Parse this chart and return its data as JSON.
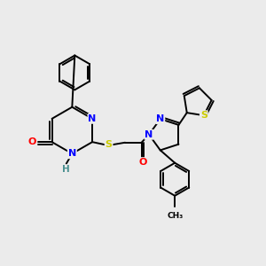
{
  "bg_color": "#ebebeb",
  "bond_color": "#000000",
  "atom_colors": {
    "N": "#0000ff",
    "O": "#ff0000",
    "S": "#cccc00",
    "H": "#4a9090",
    "C": "#000000"
  },
  "line_width": 1.4,
  "figsize": [
    3.0,
    3.0
  ],
  "dpi": 100
}
